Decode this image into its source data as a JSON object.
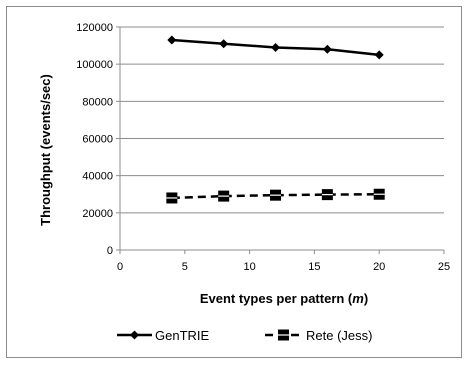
{
  "chart_data": {
    "type": "line",
    "title": "",
    "xlabel_prefix": "Event types per pattern (",
    "xlabel_var": "m",
    "xlabel_suffix": ")",
    "ylabel": "Throughput (events/sec)",
    "xlim": [
      0,
      25
    ],
    "ylim": [
      0,
      120000
    ],
    "xticks": [
      0,
      5,
      10,
      15,
      20,
      25
    ],
    "yticks": [
      0,
      20000,
      40000,
      60000,
      80000,
      100000,
      120000
    ],
    "grid": "horizontal",
    "legend_position": "bottom",
    "x": [
      4,
      8,
      12,
      16,
      20
    ],
    "series": [
      {
        "name": "GenTRIE",
        "values": [
          113000,
          111000,
          109000,
          108000,
          105000
        ],
        "color": "#000000",
        "line_style": "solid",
        "marker": "diamond"
      },
      {
        "name": "Rete (Jess)",
        "values": [
          28000,
          29000,
          29500,
          29800,
          30000
        ],
        "color": "#000000",
        "line_style": "dashed",
        "marker": "square"
      }
    ]
  }
}
